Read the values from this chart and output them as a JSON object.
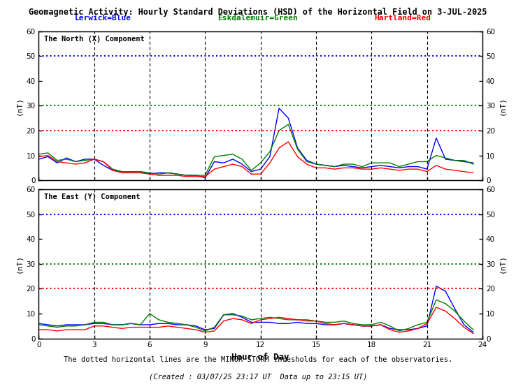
{
  "title": "Geomagnetic Activity: Hourly Standard Deviations (HSD) of the Horizontal Field on 3-JUL-2025",
  "legend_lerwick": "Lerwick=Blue",
  "legend_eskdalemuir": "Eskdalemuir=Green",
  "legend_hartland": "Hartland=Red",
  "subtitle_north": "The North (X) Component",
  "subtitle_east": "The East (Y) Component",
  "xlabel": "Hour of Day",
  "ylabel": "(nT)",
  "footnote1": "The dotted horizontal lines are the MINOR STORM thresholds for each of the observatories.",
  "footnote2": "(Created : 03/07/25 23:17 UT  Data up to 23:15 UT)",
  "ylim": [
    0,
    60
  ],
  "xlim": [
    0,
    24
  ],
  "xticks": [
    0,
    3,
    6,
    9,
    12,
    15,
    18,
    21,
    24
  ],
  "yticks": [
    0,
    10,
    20,
    30,
    40,
    50,
    60
  ],
  "threshold_blue": 50,
  "threshold_green": 30,
  "threshold_red": 20,
  "color_blue": "#0000FF",
  "color_green": "#008000",
  "color_red": "#FF0000",
  "hours": [
    0.0,
    0.5,
    1.0,
    1.5,
    2.0,
    2.5,
    3.0,
    3.5,
    4.0,
    4.5,
    5.0,
    5.5,
    6.0,
    6.5,
    7.0,
    7.5,
    8.0,
    8.5,
    9.0,
    9.5,
    10.0,
    10.5,
    11.0,
    11.5,
    12.0,
    12.5,
    13.0,
    13.5,
    14.0,
    14.5,
    15.0,
    15.5,
    16.0,
    16.5,
    17.0,
    17.5,
    18.0,
    18.5,
    19.0,
    19.5,
    20.0,
    20.5,
    21.0,
    21.5,
    22.0,
    22.5,
    23.0,
    23.5
  ],
  "north_blue": [
    8.5,
    9.5,
    7.0,
    9.0,
    7.5,
    8.5,
    8.5,
    6.0,
    4.0,
    3.5,
    3.5,
    3.5,
    2.5,
    3.0,
    3.0,
    2.5,
    2.0,
    2.0,
    1.0,
    7.5,
    7.0,
    8.5,
    6.5,
    3.5,
    4.5,
    9.5,
    29.0,
    25.0,
    13.0,
    8.0,
    6.5,
    6.0,
    5.5,
    6.0,
    5.5,
    5.0,
    5.5,
    6.0,
    5.5,
    5.0,
    5.5,
    5.5,
    4.5,
    17.0,
    8.5,
    8.0,
    7.5,
    7.0
  ],
  "north_green": [
    10.5,
    11.0,
    8.0,
    8.5,
    7.5,
    8.0,
    8.5,
    7.5,
    4.5,
    3.5,
    3.5,
    3.5,
    3.0,
    2.5,
    3.0,
    2.5,
    2.0,
    2.0,
    2.0,
    9.5,
    10.0,
    10.5,
    8.5,
    4.0,
    7.0,
    11.5,
    20.0,
    22.5,
    12.5,
    7.5,
    6.5,
    6.0,
    5.5,
    6.5,
    6.5,
    5.5,
    7.0,
    7.0,
    7.0,
    5.5,
    6.5,
    7.5,
    7.5,
    10.0,
    9.0,
    8.0,
    8.0,
    6.5
  ],
  "north_red": [
    9.5,
    10.0,
    7.5,
    7.0,
    6.5,
    7.0,
    8.5,
    7.5,
    4.0,
    3.0,
    3.0,
    3.0,
    2.5,
    2.0,
    2.0,
    2.0,
    1.5,
    1.5,
    1.5,
    4.5,
    5.5,
    6.5,
    5.5,
    2.5,
    2.5,
    7.0,
    13.0,
    15.5,
    9.5,
    6.5,
    5.0,
    5.0,
    4.5,
    5.0,
    5.0,
    4.5,
    4.5,
    5.0,
    4.5,
    4.0,
    4.5,
    4.5,
    3.5,
    6.0,
    4.5,
    4.0,
    3.5,
    3.0
  ],
  "east_blue": [
    6.0,
    5.5,
    5.0,
    5.5,
    5.5,
    5.5,
    6.0,
    6.0,
    5.5,
    5.5,
    6.0,
    5.5,
    5.5,
    6.0,
    6.0,
    5.5,
    5.5,
    5.0,
    3.5,
    4.0,
    9.5,
    10.0,
    8.5,
    6.5,
    6.5,
    6.5,
    6.0,
    6.0,
    6.5,
    6.0,
    6.0,
    5.5,
    5.5,
    6.0,
    5.5,
    5.0,
    5.0,
    5.5,
    4.0,
    3.5,
    3.5,
    4.0,
    5.0,
    21.0,
    19.0,
    12.0,
    5.5,
    2.5
  ],
  "east_green": [
    5.5,
    5.0,
    4.5,
    5.0,
    5.0,
    5.5,
    6.5,
    6.5,
    5.5,
    5.5,
    6.0,
    5.5,
    10.0,
    7.5,
    6.5,
    6.0,
    5.5,
    4.5,
    3.0,
    4.5,
    9.5,
    9.5,
    9.0,
    7.5,
    8.0,
    8.5,
    8.0,
    7.5,
    7.5,
    7.5,
    7.0,
    6.5,
    6.5,
    7.0,
    6.0,
    5.5,
    5.5,
    6.5,
    5.0,
    3.0,
    4.0,
    5.5,
    6.5,
    15.5,
    14.0,
    11.0,
    7.0,
    3.5
  ],
  "east_red": [
    3.5,
    3.5,
    3.0,
    3.5,
    3.5,
    3.5,
    5.0,
    5.0,
    4.5,
    4.0,
    4.5,
    4.5,
    4.5,
    4.5,
    5.0,
    4.5,
    4.0,
    3.5,
    2.5,
    3.0,
    7.0,
    8.0,
    7.5,
    6.0,
    7.5,
    8.0,
    8.5,
    8.0,
    7.5,
    7.0,
    7.0,
    6.0,
    5.5,
    6.0,
    5.5,
    5.0,
    5.0,
    5.5,
    3.5,
    2.5,
    3.0,
    4.0,
    6.0,
    12.5,
    11.0,
    8.0,
    4.5,
    2.0
  ]
}
